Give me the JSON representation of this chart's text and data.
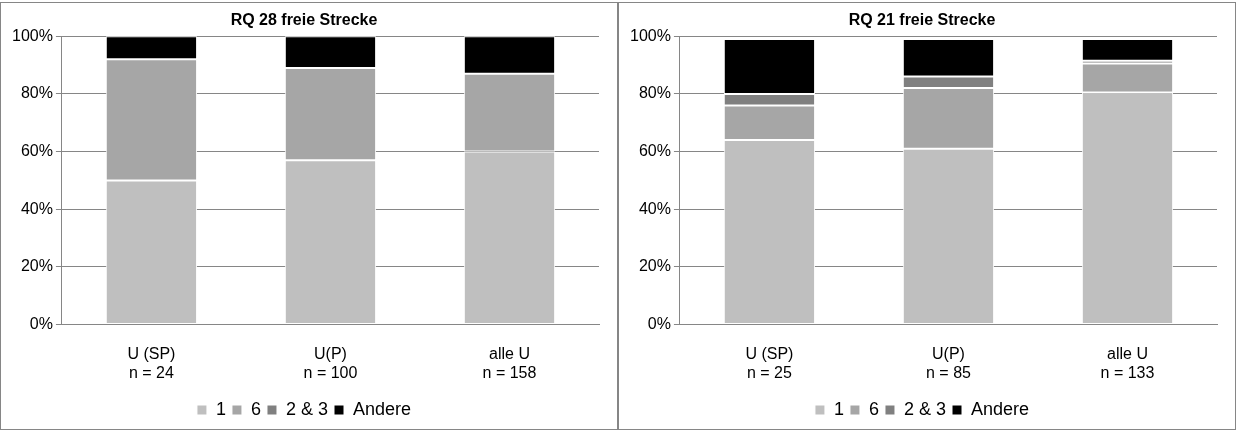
{
  "chart_data": [
    {
      "type": "bar",
      "title": "RQ 28 freie Strecke",
      "categories": [
        "U (SP)\nn = 24",
        "U(P)\nn = 100",
        "alle U\nn = 158"
      ],
      "stacked": true,
      "series": [
        {
          "name": "1",
          "color": "#bfbfbf",
          "values": [
            50,
            57,
            60
          ]
        },
        {
          "name": "6",
          "color": "#a6a6a6",
          "values": [
            42,
            32,
            27
          ]
        },
        {
          "name": "2 & 3",
          "color": "#808080",
          "values": [
            0,
            0,
            0
          ]
        },
        {
          "name": "Andere",
          "color": "#000000",
          "values": [
            8,
            11,
            13
          ]
        }
      ],
      "ylim": [
        0,
        100
      ],
      "yticks": [
        {
          "value": 0,
          "label": "0%"
        },
        {
          "value": 20,
          "label": "20%"
        },
        {
          "value": 40,
          "label": "40%"
        },
        {
          "value": 60,
          "label": "60%"
        },
        {
          "value": 80,
          "label": "80%"
        },
        {
          "value": 100,
          "label": "100%"
        }
      ],
      "grid": "y",
      "legend": "bottom"
    },
    {
      "type": "bar",
      "title": "RQ 21 freie Strecke",
      "categories": [
        "U (SP)\nn = 25",
        "U(P)\nn = 85",
        "alle U\nn = 133"
      ],
      "stacked": true,
      "series": [
        {
          "name": "1",
          "color": "#bfbfbf",
          "values": [
            64,
            61,
            80.5
          ]
        },
        {
          "name": "6",
          "color": "#a6a6a6",
          "values": [
            12,
            21,
            10
          ]
        },
        {
          "name": "2 & 3",
          "color": "#808080",
          "values": [
            4,
            4,
            1
          ]
        },
        {
          "name": "Andere",
          "color": "#000000",
          "values": [
            19,
            13,
            7.5
          ]
        }
      ],
      "ylim": [
        0,
        100
      ],
      "yticks": [
        {
          "value": 0,
          "label": "0%"
        },
        {
          "value": 20,
          "label": "20%"
        },
        {
          "value": 40,
          "label": "40%"
        },
        {
          "value": 60,
          "label": "60%"
        },
        {
          "value": 80,
          "label": "80%"
        },
        {
          "value": 100,
          "label": "100%"
        }
      ],
      "grid": "y",
      "legend": "bottom"
    }
  ]
}
